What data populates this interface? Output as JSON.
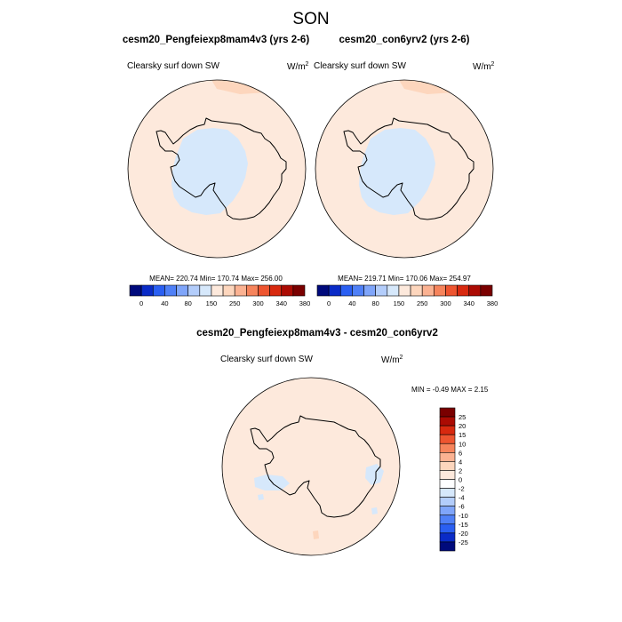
{
  "figure": {
    "season": "SON",
    "units_main": "W/m",
    "units_sup": "2"
  },
  "chart_data": [
    {
      "type": "heatmap",
      "title": "cesm20_Pengfeiexp8mam4v3 (yrs 2-6)",
      "field": "Clearsky surf down SW",
      "projection": "south-polar-stereographic",
      "stats": {
        "mean": 220.74,
        "min": 170.74,
        "max": 256.0
      },
      "stats_text": "MEAN= 220.74  Min= 170.74  Max= 256.00",
      "colorbar_labels": [
        "0",
        "40",
        "80",
        "150",
        "250",
        "300",
        "340",
        "380"
      ]
    },
    {
      "type": "heatmap",
      "title": "cesm20_con6yrv2 (yrs 2-6)",
      "field": "Clearsky surf down SW",
      "projection": "south-polar-stereographic",
      "stats": {
        "mean": 219.71,
        "min": 170.06,
        "max": 254.97
      },
      "stats_text": "MEAN= 219.71  Min= 170.06  Max= 254.97",
      "colorbar_labels": [
        "0",
        "40",
        "80",
        "150",
        "250",
        "300",
        "340",
        "380"
      ]
    },
    {
      "type": "heatmap",
      "title": "cesm20_Pengfeiexp8mam4v3 - cesm20_con6yrv2",
      "field": "Clearsky surf down SW",
      "projection": "south-polar-stereographic",
      "stats": {
        "min": -0.49,
        "max": 2.15
      },
      "stats_text": "MIN =  -0.49 MAX =   2.15",
      "colorbar_labels": [
        "25",
        "20",
        "15",
        "10",
        "6",
        "4",
        "2",
        "0",
        "-2",
        "-4",
        "-6",
        "-10",
        "-15",
        "-20",
        "-25"
      ]
    }
  ],
  "colors": {
    "abs_scale": [
      "#000a7c",
      "#0a2bc7",
      "#2a5ff2",
      "#4f80f7",
      "#7fa5fa",
      "#b3cdfb",
      "#d6e8fb",
      "#fde9dc",
      "#fdd6bd",
      "#fbb292",
      "#f6845c",
      "#ee5530",
      "#d8290f",
      "#ab0b03",
      "#7a0000"
    ],
    "diff_scale": [
      "#7a0000",
      "#ab0b03",
      "#d8290f",
      "#ee5530",
      "#f6845c",
      "#fbb292",
      "#fdd6bd",
      "#fde9dc",
      "#ffffff",
      "#d6e8fb",
      "#b3cdfb",
      "#7fa5fa",
      "#4f80f7",
      "#2a5ff2",
      "#0a2bc7",
      "#000a7c"
    ],
    "ocean_bg": "#fde9dc",
    "low_region": "#d6e8fb",
    "high_region": "#fdd6bd",
    "coast": "#000000"
  }
}
